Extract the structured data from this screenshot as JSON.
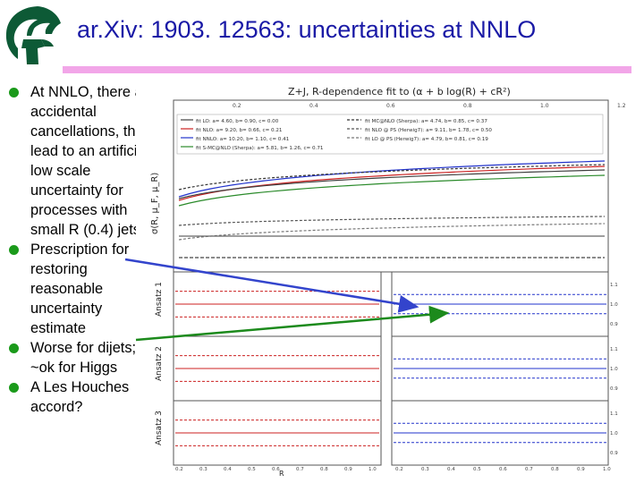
{
  "slide": {
    "title": "ar.Xiv: 1903. 12563: uncertainties at NNLO",
    "accent_color": "#1a1aa6",
    "rule_color": "#f2a6e8",
    "bullet_color": "#1b9a1b",
    "logo": "spartan-helmet-logo",
    "bullets": [
      "At NNLO, there are accidental cancellations, that lead to an artificially low scale uncertainty for processes with small R (0.4) jets",
      "Prescription for restoring reasonable uncertainty estimate",
      "Worse for dijets; ~ok for Higgs",
      "A Les Houches accord?"
    ]
  },
  "figure": {
    "title": "Z+J, R-dependence fit to (α + b log(R) + cR²)",
    "ylabel": "σ(R, μ_F, μ_R)",
    "xlabel": "R",
    "panel_labels": [
      "Ansatz 1",
      "Ansatz 2",
      "Ansatz 3"
    ],
    "legend_left": [
      "fit LO: a= 4.60, b= 0.90, c= 0.00",
      "fit NLO: a= 9.20, b= 0.66, c= 0.21",
      "fit NNLO: a= 10.20, b= 1.10, c= 0.41",
      "fit S-MC@NLO (Sherpa): a= 5.81, b= 1.26, c= 0.71"
    ],
    "legend_right": [
      "fit MC@NLO (Sherpa): a= 4.74, b= 0.85, c= 0.37",
      "fit NLO @ PS (Herwig7): a= 9.11, b= 1.78, c= 0.50",
      "fit LO @ PS (Herwig7): a= 4.79, b= 0.81, c= 0.19"
    ],
    "top_ticks": [
      "0.2",
      "0.4",
      "0.6",
      "0.8",
      "1.0",
      "1.2"
    ],
    "bottom_ticks_left": [
      "0.2",
      "0.3",
      "0.4",
      "0.5",
      "0.6",
      "0.7",
      "0.8",
      "0.9",
      "1.0"
    ],
    "bottom_ticks_right": [
      "0.2",
      "0.3",
      "0.4",
      "0.5",
      "0.6",
      "0.7",
      "0.8",
      "0.9",
      "1.0"
    ],
    "panel_ticks": [
      "1.1",
      "1.0",
      "0.9"
    ],
    "series_colors": [
      "#404040",
      "#cc2222",
      "#2233cc",
      "#2a8a2a",
      "#333333",
      "#555555",
      "#777777"
    ]
  },
  "arrows": [
    {
      "name": "blue-arrow",
      "color": "#3344cc"
    },
    {
      "name": "green-arrow",
      "color": "#1c8a1c"
    }
  ]
}
